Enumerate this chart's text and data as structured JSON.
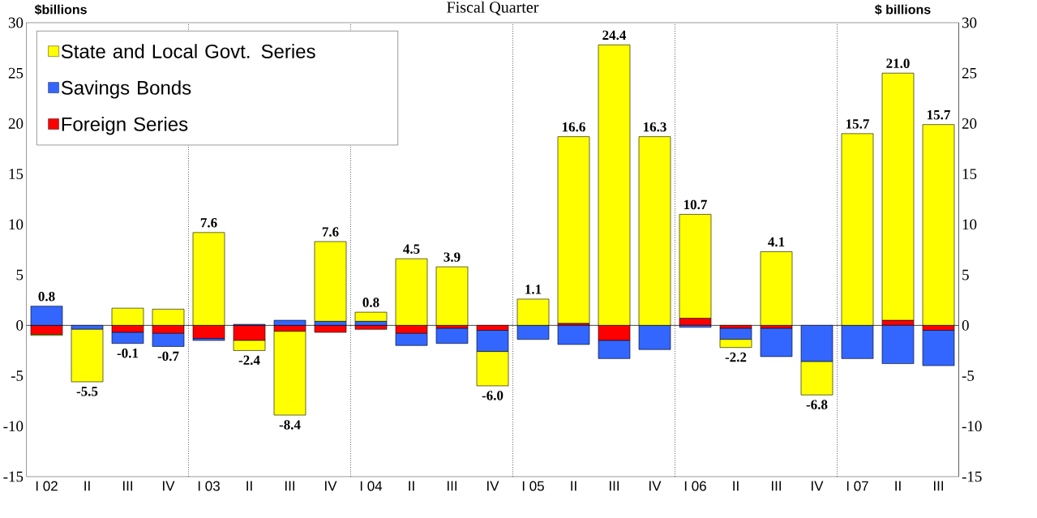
{
  "chart_data": {
    "type": "bar",
    "stacked": true,
    "title": "Fiscal Quarter",
    "ylabel": "$billions",
    "y2label": "$ billions",
    "categories": [
      "I 02",
      "II",
      "III",
      "IV",
      "I 03",
      "II",
      "III",
      "IV",
      "I 04",
      "II",
      "III",
      "IV",
      "I 05",
      "II",
      "III",
      "IV",
      "I 06",
      "II",
      "III",
      "IV",
      "I 07",
      "II",
      "III"
    ],
    "series": [
      {
        "name": "Foreign Series",
        "color": "#ff0000",
        "values": [
          -0.9,
          0,
          -0.7,
          -0.8,
          -1.3,
          -1.5,
          -0.6,
          -0.7,
          -0.4,
          -0.8,
          -0.3,
          -0.5,
          0,
          0.2,
          -1.5,
          0,
          0.7,
          -0.3,
          -0.3,
          0,
          0,
          0.5,
          -0.5
        ]
      },
      {
        "name": "Savings Bonds",
        "color": "#3366ff",
        "values": [
          1.9,
          -0.4,
          -1.1,
          -1.3,
          -0.2,
          0.1,
          0.5,
          0.4,
          0.4,
          -1.2,
          -1.5,
          -2.1,
          -1.4,
          -1.9,
          -1.8,
          -2.4,
          -0.2,
          -1.1,
          -2.8,
          -3.6,
          -3.3,
          -3.8,
          -3.5
        ]
      },
      {
        "name": "State and Local Govt. Series",
        "color": "#ffff00",
        "values": [
          -0.1,
          -5.2,
          1.7,
          1.6,
          9.2,
          -1.0,
          -8.3,
          7.9,
          0.9,
          6.6,
          5.8,
          -3.4,
          2.6,
          18.5,
          27.8,
          18.7,
          10.3,
          -0.8,
          7.3,
          -3.3,
          19.0,
          24.5,
          19.9
        ]
      }
    ],
    "totals": [
      "0.8",
      "-5.5",
      "-0.1",
      "-0.7",
      "7.6",
      "-2.4",
      "-8.4",
      "7.6",
      "0.8",
      "4.5",
      "3.9",
      "-6.0",
      "1.1",
      "16.6",
      "24.4",
      "16.3",
      "10.7",
      "-2.2",
      "4.1",
      "-6.8",
      "15.7",
      "21.0",
      "15.7"
    ],
    "ylim": [
      -15,
      30
    ],
    "yticks": [
      -15,
      -10,
      -5,
      0,
      5,
      10,
      15,
      20,
      25,
      30
    ],
    "y2lim": [
      -15,
      30
    ],
    "y2ticks": [
      -15,
      -10,
      -5,
      0,
      5,
      10,
      15,
      20,
      25,
      30
    ],
    "legend": "top left",
    "grid": false
  }
}
